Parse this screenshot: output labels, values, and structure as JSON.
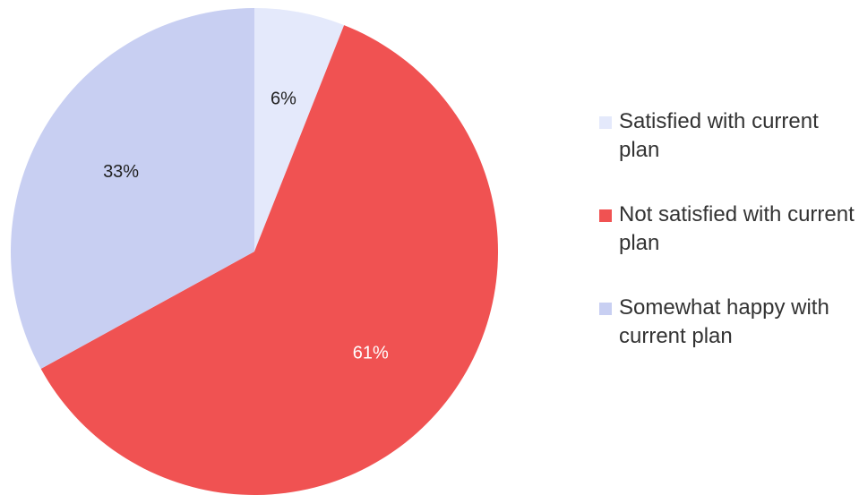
{
  "chart_data": {
    "type": "pie",
    "start_angle_deg": 0,
    "direction": "clockwise",
    "slices": [
      {
        "label": "Satisfied with current plan",
        "value": 6,
        "value_label": "6%",
        "color": "#e4e9fb",
        "label_color": "#222222"
      },
      {
        "label": "Not satisfied with current plan",
        "value": 61,
        "value_label": "61%",
        "color": "#f05252",
        "label_color": "#ffffff"
      },
      {
        "label": "Somewhat happy with current plan",
        "value": 33,
        "value_label": "33%",
        "color": "#c8cff2",
        "label_color": "#222222"
      }
    ],
    "legend_position": "right"
  }
}
